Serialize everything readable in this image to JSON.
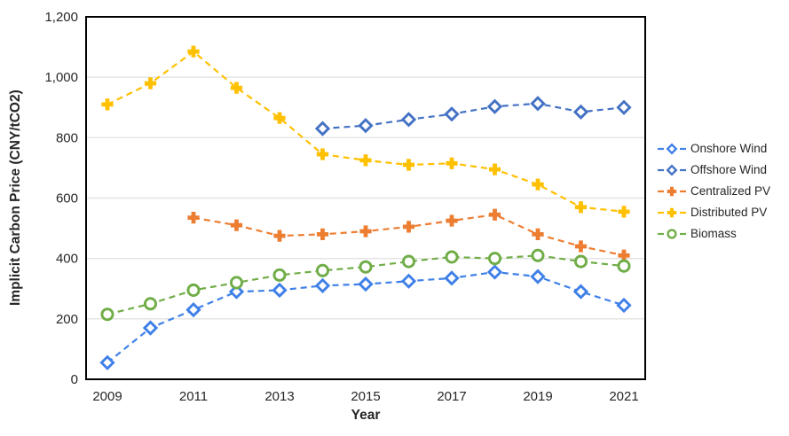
{
  "chart_data": {
    "type": "line",
    "title": "",
    "xlabel": "Year",
    "ylabel": "Implicit Carbon Price (CNY/tCO2)",
    "line_style": "dashed",
    "grid": "horizontal",
    "legend_position": "right",
    "x": [
      2009,
      2010,
      2011,
      2012,
      2013,
      2014,
      2015,
      2016,
      2017,
      2018,
      2019,
      2020,
      2021
    ],
    "x_tick_values": [
      2009,
      2011,
      2013,
      2015,
      2017,
      2019,
      2021
    ],
    "x_tick_labels": [
      "2009",
      "2011",
      "2013",
      "2015",
      "2017",
      "2019",
      "2021"
    ],
    "ylim": [
      0,
      1200
    ],
    "y_ticks": [
      0,
      200,
      400,
      600,
      800,
      1000,
      1200
    ],
    "y_tick_labels": [
      "0",
      "200",
      "400",
      "600",
      "800",
      "1,000",
      "1,200"
    ],
    "colors": {
      "axis_border": "#000000",
      "gridline": "#e3e3e3",
      "tick_text": "#262626",
      "title_text": "#262626"
    },
    "series": [
      {
        "name": "Onshore Wind",
        "color": "#3f80e8",
        "marker": "diamond",
        "values": [
          55,
          170,
          230,
          290,
          295,
          310,
          315,
          325,
          335,
          355,
          340,
          290,
          245
        ]
      },
      {
        "name": "Offshore Wind",
        "color": "#4472c4",
        "marker": "diamond",
        "values": [
          null,
          null,
          null,
          null,
          null,
          830,
          840,
          860,
          878,
          903,
          913,
          885,
          900
        ]
      },
      {
        "name": "Centralized PV",
        "color": "#ed7d31",
        "marker": "plus",
        "values": [
          null,
          null,
          535,
          510,
          475,
          480,
          490,
          505,
          525,
          545,
          480,
          440,
          410
        ]
      },
      {
        "name": "Distributed PV",
        "color": "#ffc000",
        "marker": "plus",
        "values": [
          910,
          980,
          1085,
          965,
          865,
          745,
          725,
          710,
          715,
          695,
          645,
          570,
          555
        ]
      },
      {
        "name": "Biomass",
        "color": "#70ad47",
        "marker": "circle",
        "values": [
          215,
          250,
          295,
          320,
          345,
          360,
          372,
          390,
          405,
          400,
          410,
          390,
          375
        ]
      }
    ]
  }
}
